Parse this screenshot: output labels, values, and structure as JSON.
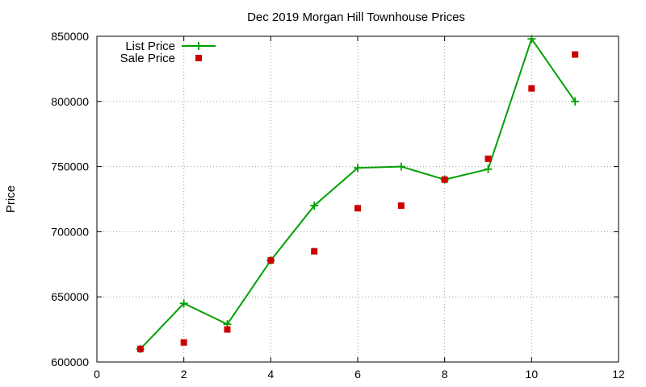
{
  "chart_data": {
    "type": "line",
    "title": "Dec 2019 Morgan Hill Townhouse Prices",
    "xlabel": "",
    "ylabel": "Price",
    "xlim": [
      0,
      12
    ],
    "ylim": [
      600000,
      850000
    ],
    "x_ticks": [
      "0",
      "2",
      "4",
      "6",
      "8",
      "10",
      "12"
    ],
    "y_ticks": [
      "600000",
      "650000",
      "700000",
      "750000",
      "800000",
      "850000"
    ],
    "grid": true,
    "legend_position": "top-left",
    "series": [
      {
        "name": "List Price",
        "style": "line-with-plus-markers",
        "color": "#00a000",
        "x": [
          1,
          2,
          3,
          4,
          5,
          6,
          7,
          8,
          9,
          10,
          11
        ],
        "values": [
          610000,
          645000,
          629000,
          678000,
          720000,
          749000,
          750000,
          740000,
          748000,
          848000,
          800000
        ]
      },
      {
        "name": "Sale Price",
        "style": "square-markers",
        "color": "#cc0000",
        "x": [
          1,
          2,
          3,
          4,
          5,
          6,
          7,
          8,
          9,
          10,
          11
        ],
        "values": [
          610000,
          615000,
          625000,
          678000,
          685000,
          718000,
          720000,
          740000,
          756000,
          810000,
          836000
        ]
      }
    ]
  }
}
